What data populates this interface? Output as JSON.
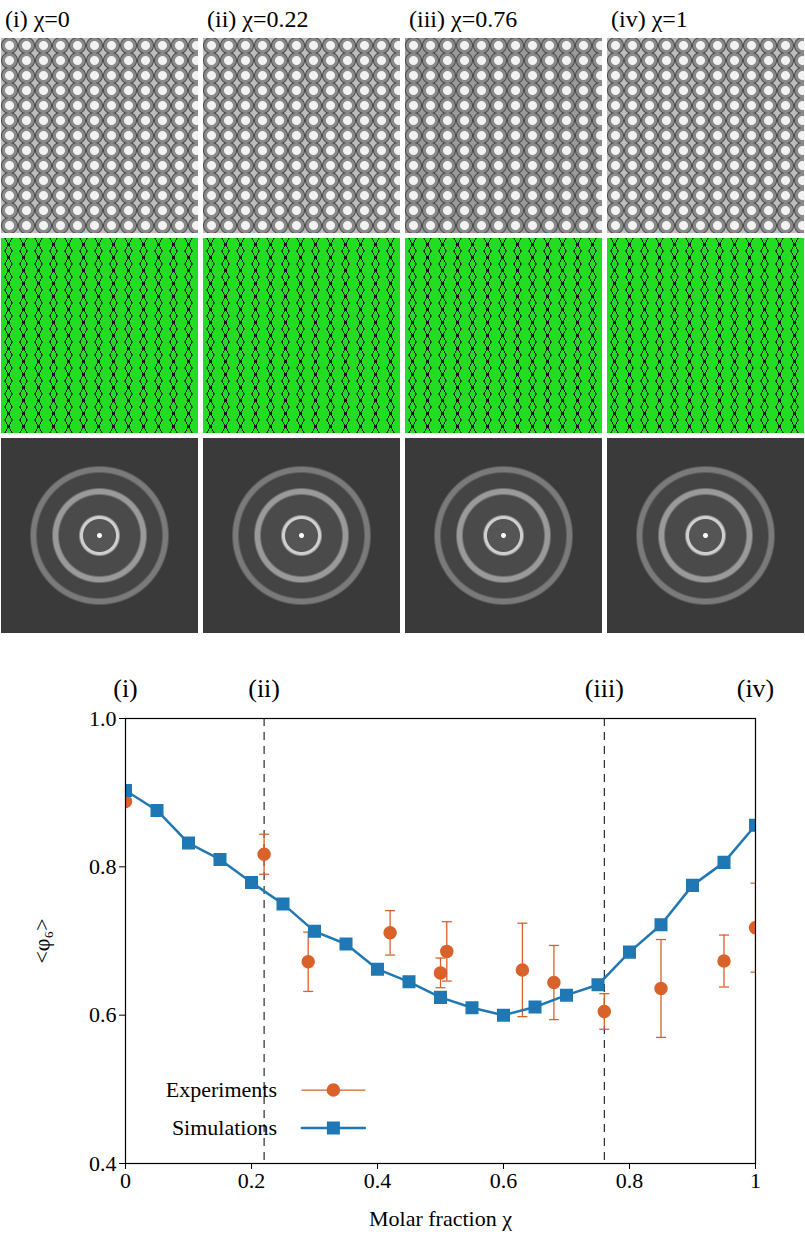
{
  "panels": [
    {
      "title": "(i) χ=0"
    },
    {
      "title": "(ii) χ=0.22"
    },
    {
      "title": "(iii) χ=0.76"
    },
    {
      "title": "(iv) χ=1"
    }
  ],
  "chart_data": {
    "type": "line",
    "xlabel": "Molar fraction χ",
    "ylabel": "<φ₆>",
    "xlim": [
      0,
      1
    ],
    "ylim": [
      0.4,
      1
    ],
    "xticks": [
      0,
      0.2,
      0.4,
      0.6,
      0.8,
      1
    ],
    "yticks": [
      0.4,
      0.6,
      0.8,
      {
        "value": 1,
        "label": "1.0"
      }
    ],
    "grid": false,
    "legend": "lower left",
    "annotations": [
      {
        "x": 0,
        "text": "(i)"
      },
      {
        "x": 0.22,
        "text": "(ii)"
      },
      {
        "x": 0.76,
        "text": "(iii)"
      },
      {
        "x": 1,
        "text": "(iv)"
      }
    ],
    "reference_lines": {
      "x": [
        0.22,
        0.76
      ],
      "line_style": "dashed"
    },
    "series": [
      {
        "name": "Experiments",
        "type": "scatter",
        "color": "#d9622b",
        "marker": "circle",
        "x": [
          0,
          0.22,
          0.29,
          0.42,
          0.5,
          0.51,
          0.63,
          0.68,
          0.76,
          0.85,
          0.95,
          1
        ],
        "values": [
          0.888,
          0.817,
          0.672,
          0.711,
          0.657,
          0.686,
          0.661,
          0.644,
          0.605,
          0.636,
          0.673,
          0.718
        ],
        "errors": [
          null,
          0.027,
          0.04,
          0.03,
          0.02,
          0.04,
          0.063,
          0.05,
          0.024,
          0.066,
          0.035,
          0.06
        ]
      },
      {
        "name": "Simulations",
        "type": "line",
        "color": "#1f78b4",
        "marker": "square",
        "line_style": "solid",
        "x": [
          0,
          0.05,
          0.1,
          0.15,
          0.2,
          0.25,
          0.3,
          0.35,
          0.4,
          0.45,
          0.5,
          0.55,
          0.6,
          0.65,
          0.7,
          0.75,
          0.8,
          0.85,
          0.9,
          0.95,
          1
        ],
        "values": [
          0.903,
          0.876,
          0.832,
          0.81,
          0.779,
          0.75,
          0.713,
          0.696,
          0.662,
          0.645,
          0.624,
          0.61,
          0.6,
          0.611,
          0.627,
          0.641,
          0.685,
          0.722,
          0.775,
          0.806,
          0.856
        ]
      }
    ]
  }
}
